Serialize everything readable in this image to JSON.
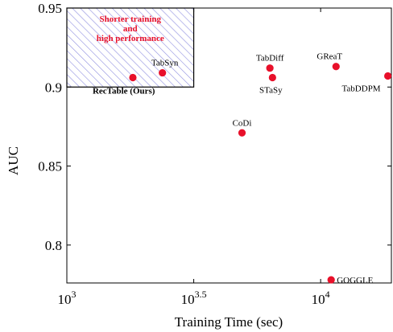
{
  "chart_data": {
    "type": "scatter",
    "xlabel": "Training Time (sec)",
    "ylabel": "AUC",
    "xscale": "log10",
    "xlim": [
      1000,
      19000
    ],
    "ylim": [
      0.776,
      0.95
    ],
    "x_ticks": [
      {
        "value": 1000,
        "base": "10",
        "exp": "3"
      },
      {
        "value": 3162.28,
        "base": "10",
        "exp": "3.5"
      },
      {
        "value": 10000,
        "base": "10",
        "exp": "4"
      }
    ],
    "y_ticks": [
      {
        "value": 0.8,
        "label": "0.8"
      },
      {
        "value": 0.85,
        "label": "0.85"
      },
      {
        "value": 0.9,
        "label": "0.9"
      },
      {
        "value": 0.95,
        "label": "0.95"
      }
    ],
    "grid": false,
    "marker_color": "#e8102a",
    "series": [
      {
        "points": [
          {
            "name": "RecTable (Ours)",
            "x": 1820,
            "y": 0.906,
            "bold": true
          },
          {
            "name": "TabSyn",
            "x": 2380,
            "y": 0.909
          },
          {
            "name": "TabDiff",
            "x": 6310,
            "y": 0.912
          },
          {
            "name": "STaSy",
            "x": 6460,
            "y": 0.906
          },
          {
            "name": "CoDi",
            "x": 4900,
            "y": 0.871
          },
          {
            "name": "GReaT",
            "x": 11500,
            "y": 0.913
          },
          {
            "name": "TabDDPM",
            "x": 18400,
            "y": 0.907
          },
          {
            "name": "GOGGLE",
            "x": 11000,
            "y": 0.778
          }
        ]
      }
    ],
    "highlight_region": {
      "x_range": [
        1000,
        3162.28
      ],
      "y_range": [
        0.9,
        0.95
      ],
      "pattern": "diagonal-hatch",
      "pattern_color": "#8f8fe0",
      "label_lines": [
        "Shorter training",
        "and",
        "high performance"
      ],
      "label_color": "#e8102a"
    }
  }
}
